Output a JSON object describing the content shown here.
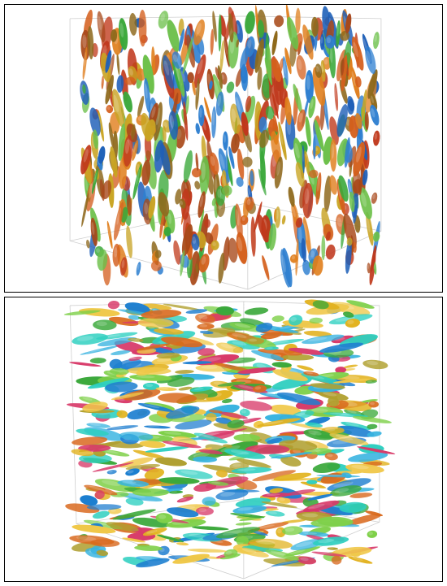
{
  "figure": {
    "panels": [
      {
        "id": "top",
        "structure_orientation": "vertical",
        "palette": [
          "#c0391b",
          "#d4601e",
          "#a8481a",
          "#e0801f",
          "#1f5fb8",
          "#2e7fd0",
          "#3aa83a",
          "#6cc04a",
          "#c9a424",
          "#8f6a1e"
        ]
      },
      {
        "id": "bottom",
        "structure_orientation": "horizontal",
        "palette": [
          "#e2b321",
          "#f0c84a",
          "#d96a1e",
          "#37b3e0",
          "#1f7fd0",
          "#3aa83a",
          "#7fd04a",
          "#2ecfc0",
          "#d83a6a",
          "#b0a030"
        ]
      }
    ]
  }
}
